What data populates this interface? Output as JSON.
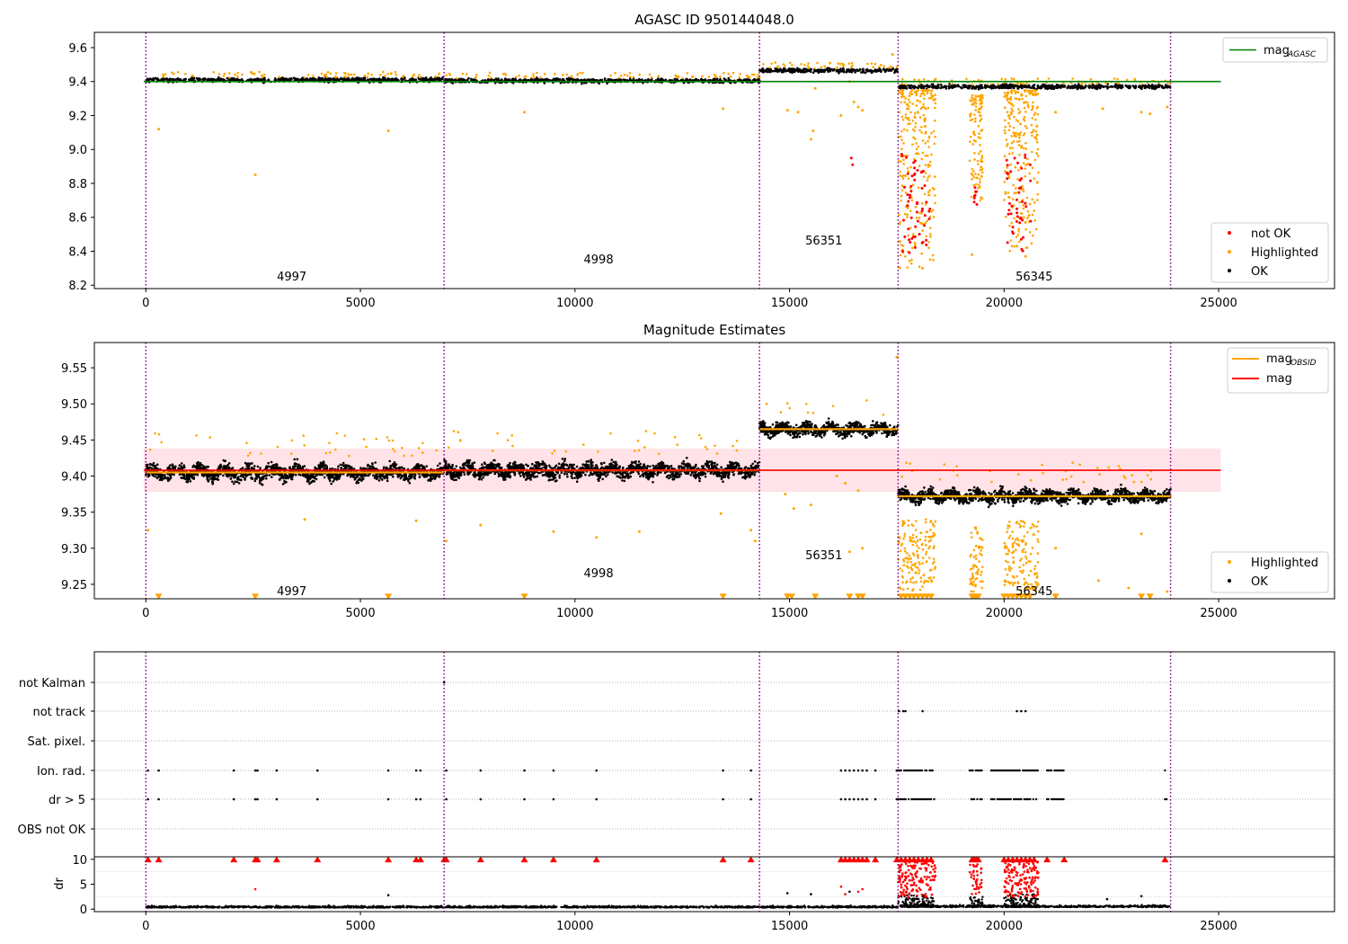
{
  "chart_data": [
    {
      "type": "scatter",
      "title": "AGASC ID 950144048.0",
      "xlim": [
        -1200,
        27700
      ],
      "ylim": [
        8.18,
        9.69
      ],
      "x_ticks": [
        0,
        5000,
        10000,
        15000,
        20000,
        25000
      ],
      "x_tick_labels": [
        "0",
        "5000",
        "10000",
        "15000",
        "20000",
        "25000"
      ],
      "y_ticks": [
        8.2,
        8.4,
        8.6,
        8.8,
        9.0,
        9.2,
        9.4,
        9.6
      ],
      "y_tick_labels": [
        "8.2",
        "8.4",
        "8.6",
        "8.8",
        "9.0",
        "9.2",
        "9.4",
        "9.6"
      ],
      "obs_boundaries": [
        0,
        6950,
        14300,
        17530,
        23880
      ],
      "obs_labels": [
        {
          "x": 3400,
          "y": 8.25,
          "text": "4997"
        },
        {
          "x": 10550,
          "y": 8.35,
          "text": "4998"
        },
        {
          "x": 15800,
          "y": 8.46,
          "text": "56351"
        },
        {
          "x": 20700,
          "y": 8.25,
          "text": "56345"
        }
      ],
      "lines": [
        {
          "name": "mag",
          "subscript": "AGASC",
          "y": 9.4,
          "x": [
            -50,
            25050
          ],
          "color": "#008000"
        }
      ],
      "ok_segments": [
        {
          "x": [
            0,
            6950
          ],
          "center": 9.41,
          "spread": 0.02
        },
        {
          "x": [
            6950,
            14300
          ],
          "center": 9.405,
          "spread": 0.02
        },
        {
          "x": [
            14300,
            17530
          ],
          "center": 9.465,
          "spread": 0.02
        },
        {
          "x": [
            17530,
            23880
          ],
          "center": 9.37,
          "spread": 0.02
        }
      ],
      "highlighted_points": [
        [
          300,
          9.12
        ],
        [
          2550,
          8.85
        ],
        [
          5650,
          9.11
        ],
        [
          8820,
          9.22
        ],
        [
          13450,
          9.24
        ],
        [
          14950,
          9.23
        ],
        [
          15500,
          9.06
        ],
        [
          15550,
          9.11
        ],
        [
          15600,
          9.36
        ],
        [
          15200,
          9.22
        ],
        [
          16400,
          9.4
        ],
        [
          16500,
          9.28
        ],
        [
          16600,
          9.25
        ],
        [
          16700,
          9.23
        ],
        [
          16200,
          9.2
        ],
        [
          17400,
          9.56
        ],
        [
          18100,
          8.3
        ],
        [
          19250,
          8.38
        ],
        [
          20300,
          8.43
        ],
        [
          20500,
          8.37
        ],
        [
          21200,
          9.22
        ],
        [
          22300,
          9.24
        ],
        [
          23200,
          9.22
        ],
        [
          23400,
          9.21
        ],
        [
          23800,
          9.25
        ]
      ],
      "highlight_clusters": [
        {
          "x": [
            17530,
            18400
          ],
          "ymin": 8.3,
          "ymax": 9.35,
          "count": 260
        },
        {
          "x": [
            19200,
            19500
          ],
          "ymin": 8.7,
          "ymax": 9.32,
          "count": 110
        },
        {
          "x": [
            20000,
            20800
          ],
          "ymin": 8.4,
          "ymax": 9.35,
          "count": 250
        }
      ],
      "not_ok_points": [
        [
          16440,
          8.95
        ],
        [
          16470,
          8.91
        ]
      ],
      "not_ok_clusters": [
        {
          "x": [
            17600,
            18300
          ],
          "ymin": 8.36,
          "ymax": 8.98,
          "count": 55
        },
        {
          "x": [
            19300,
            19400
          ],
          "ymin": 8.62,
          "ymax": 8.82,
          "count": 8
        },
        {
          "x": [
            20050,
            20650
          ],
          "ymin": 8.38,
          "ymax": 8.97,
          "count": 45
        }
      ],
      "legend_top": [
        {
          "label": "mag",
          "subscript": "AGASC",
          "color": "#008000",
          "marker": "line"
        }
      ],
      "legend_bottom": [
        {
          "label": "not OK",
          "color": "#ff0000",
          "marker": "dot"
        },
        {
          "label": "Highlighted",
          "color": "#ffa500",
          "marker": "dot"
        },
        {
          "label": "OK",
          "color": "#000000",
          "marker": "dot"
        }
      ],
      "legend_placement": [
        "upper right",
        "lower right"
      ]
    },
    {
      "type": "scatter",
      "title": "Magnitude Estimates",
      "xlim": [
        -1200,
        27700
      ],
      "ylim": [
        9.23,
        9.585
      ],
      "x_ticks": [
        0,
        5000,
        10000,
        15000,
        20000,
        25000
      ],
      "x_tick_labels": [
        "0",
        "5000",
        "10000",
        "15000",
        "20000",
        "25000"
      ],
      "y_ticks": [
        9.25,
        9.3,
        9.35,
        9.4,
        9.45,
        9.5,
        9.55
      ],
      "y_tick_labels": [
        "9.25",
        "9.30",
        "9.35",
        "9.40",
        "9.45",
        "9.50",
        "9.55"
      ],
      "obs_boundaries": [
        0,
        6950,
        14300,
        17530,
        23880
      ],
      "obs_labels": [
        {
          "x": 3400,
          "y": 9.24,
          "text": "4997"
        },
        {
          "x": 10550,
          "y": 9.265,
          "text": "4998"
        },
        {
          "x": 15800,
          "y": 9.29,
          "text": "56351"
        },
        {
          "x": 20700,
          "y": 9.24,
          "text": "56345"
        }
      ],
      "band": {
        "ymin": 9.378,
        "ymax": 9.438,
        "x": [
          -50,
          25050
        ],
        "color": "#ffc0cb"
      },
      "lines": [
        {
          "name": "mag",
          "y": 9.408,
          "x": [
            -50,
            25050
          ],
          "color": "#ff0000"
        }
      ],
      "obsid_lines": [
        {
          "x": [
            0,
            6950
          ],
          "y": 9.405
        },
        {
          "x": [
            6950,
            14300
          ],
          "y": 9.408
        },
        {
          "x": [
            14300,
            17530
          ],
          "y": 9.465
        },
        {
          "x": [
            17530,
            23880
          ],
          "y": 9.372
        }
      ],
      "ok_segments": [
        {
          "x": [
            0,
            6950
          ],
          "center": 9.405,
          "spread": 0.014
        },
        {
          "x": [
            6950,
            14300
          ],
          "center": 9.408,
          "spread": 0.014
        },
        {
          "x": [
            14300,
            17530
          ],
          "center": 9.465,
          "spread": 0.012
        },
        {
          "x": [
            17530,
            23880
          ],
          "center": 9.372,
          "spread": 0.012
        }
      ],
      "highlighted_points": [
        [
          50,
          9.325
        ],
        [
          3700,
          9.34
        ],
        [
          6300,
          9.338
        ],
        [
          7000,
          9.31
        ],
        [
          7800,
          9.332
        ],
        [
          9500,
          9.323
        ],
        [
          10500,
          9.315
        ],
        [
          11500,
          9.323
        ],
        [
          13400,
          9.348
        ],
        [
          14100,
          9.325
        ],
        [
          14200,
          9.31
        ],
        [
          14900,
          9.375
        ],
        [
          15100,
          9.355
        ],
        [
          15500,
          9.36
        ],
        [
          16100,
          9.4
        ],
        [
          16300,
          9.39
        ],
        [
          16400,
          9.295
        ],
        [
          16600,
          9.38
        ],
        [
          16700,
          9.3
        ],
        [
          17500,
          9.565
        ],
        [
          21200,
          9.3
        ],
        [
          22200,
          9.255
        ],
        [
          22900,
          9.245
        ],
        [
          23200,
          9.32
        ],
        [
          23800,
          9.24
        ]
      ],
      "highlight_clusters": [
        {
          "x": [
            17530,
            18400
          ],
          "ymin": 9.24,
          "ymax": 9.34,
          "count": 160
        },
        {
          "x": [
            19200,
            19500
          ],
          "ymin": 9.24,
          "ymax": 9.33,
          "count": 60
        },
        {
          "x": [
            20000,
            20800
          ],
          "ymin": 9.24,
          "ymax": 9.34,
          "count": 140
        }
      ],
      "clipped_markers_x": [
        300,
        2550,
        5650,
        8820,
        13450,
        14950,
        15050,
        15600,
        16400,
        16600,
        16700,
        17600,
        17700,
        17800,
        17900,
        18000,
        18100,
        18200,
        18300,
        19250,
        19300,
        19350,
        19400,
        20000,
        20100,
        20200,
        20300,
        20400,
        20500,
        20600,
        21200,
        23200,
        23400
      ],
      "legend_top": [
        {
          "label": "mag",
          "subscript": "OBSID",
          "color": "#ffa500",
          "marker": "line"
        },
        {
          "label": "mag",
          "subscript": "",
          "color": "#ff0000",
          "marker": "line"
        }
      ],
      "legend_bottom": [
        {
          "label": "Highlighted",
          "color": "#ffa500",
          "marker": "dot"
        },
        {
          "label": "OK",
          "color": "#000000",
          "marker": "dot"
        }
      ],
      "legend_placement": [
        "upper right",
        "lower right"
      ]
    },
    {
      "type": "scatter",
      "xlim": [
        -1200,
        27700
      ],
      "categories": [
        "not Kalman",
        "not track",
        "Sat. pixel.",
        "Ion. rad.",
        "dr > 5",
        "OBS not OK"
      ],
      "obs_boundaries": [
        0,
        6950,
        14300,
        17530,
        23880
      ],
      "flag_points": {
        "not Kalman": [
          6950
        ],
        "not track": [
          17550,
          17650,
          17700,
          18100,
          20300,
          20400,
          20500
        ],
        "Sat. pixel.": [],
        "Ion. rad.": [
          50,
          300,
          2050,
          2550,
          2600,
          3050,
          4000,
          5650,
          6300,
          6400,
          7000,
          7800,
          8820,
          9500,
          10500,
          13450,
          14100,
          16200,
          16300,
          16400,
          16500,
          16600,
          16700,
          16800,
          17000,
          17500
        ],
        "dr > 5": [
          50,
          300,
          2050,
          2550,
          2600,
          3050,
          4000,
          5650,
          6300,
          6400,
          7000,
          7800,
          8820,
          9500,
          10500,
          13450,
          14100,
          16200,
          16300,
          16400,
          16500,
          16600,
          16700,
          16800,
          17000,
          17500
        ],
        "OBS not OK": []
      },
      "flag_clusters": {
        "Ion. rad.": [
          [
            17530,
            18400
          ],
          [
            19200,
            19500
          ],
          [
            19700,
            20800
          ],
          [
            21000,
            21400
          ],
          [
            23750,
            23800
          ]
        ],
        "dr > 5": [
          [
            17530,
            18400
          ],
          [
            19200,
            19500
          ],
          [
            19700,
            20800
          ],
          [
            21000,
            21400
          ],
          [
            23750,
            23800
          ]
        ],
        "not track": []
      }
    },
    {
      "type": "scatter",
      "ylabel": "dr",
      "xlim": [
        -1200,
        27700
      ],
      "ylim": [
        -0.5,
        10.5
      ],
      "x_ticks": [
        0,
        5000,
        10000,
        15000,
        20000,
        25000
      ],
      "x_tick_labels": [
        "0",
        "5000",
        "10000",
        "15000",
        "20000",
        "25000"
      ],
      "y_ticks": [
        0,
        5,
        10
      ],
      "y_tick_labels": [
        "0",
        "5",
        "10"
      ],
      "obs_boundaries": [
        0,
        6950,
        14300,
        17530,
        23880
      ],
      "ok_segments": [
        {
          "x": [
            0,
            6950
          ],
          "center": 0.3,
          "spread": 0.3
        },
        {
          "x": [
            6950,
            14300
          ],
          "center": 0.3,
          "spread": 0.3
        },
        {
          "x": [
            14300,
            17530
          ],
          "center": 0.3,
          "spread": 0.3
        },
        {
          "x": [
            17530,
            23880
          ],
          "center": 0.4,
          "spread": 0.35
        }
      ],
      "ok_extra_points": [
        [
          5650,
          2.8
        ],
        [
          14950,
          3.2
        ],
        [
          15500,
          3.0
        ],
        [
          16400,
          3.5
        ],
        [
          22400,
          2.0
        ],
        [
          23200,
          2.6
        ]
      ],
      "ok_clusters": [
        {
          "x": [
            17530,
            18400
          ],
          "ymin": 0.5,
          "ymax": 3.0,
          "count": 120
        },
        {
          "x": [
            19200,
            19500
          ],
          "ymin": 0.5,
          "ymax": 2.5,
          "count": 40
        },
        {
          "x": [
            20000,
            20800
          ],
          "ymin": 0.5,
          "ymax": 3.0,
          "count": 120
        }
      ],
      "red_points": [
        [
          2550,
          4.0
        ],
        [
          16200,
          4.5
        ],
        [
          16300,
          3.0
        ],
        [
          16600,
          3.5
        ],
        [
          16700,
          4.0
        ]
      ],
      "red_clusters": [
        {
          "x": [
            17530,
            18400
          ],
          "ymin": 2.5,
          "ymax": 9.5,
          "count": 140
        },
        {
          "x": [
            19200,
            19500
          ],
          "ymin": 3.0,
          "ymax": 9.0,
          "count": 40
        },
        {
          "x": [
            20000,
            20800
          ],
          "ymin": 2.5,
          "ymax": 9.5,
          "count": 140
        }
      ],
      "red_triangles_x": [
        50,
        300,
        2050,
        2550,
        2600,
        3050,
        4000,
        5650,
        6300,
        6400,
        6950,
        7000,
        7800,
        8820,
        9500,
        10500,
        13450,
        14100,
        16200,
        16300,
        16400,
        16500,
        16600,
        16700,
        16800,
        17000,
        17500,
        17600,
        17700,
        17800,
        17900,
        18000,
        18100,
        18200,
        18300,
        19250,
        19300,
        19350,
        19400,
        20000,
        20100,
        20200,
        20300,
        20400,
        20500,
        20600,
        20700,
        21000,
        21400,
        23750
      ]
    }
  ]
}
